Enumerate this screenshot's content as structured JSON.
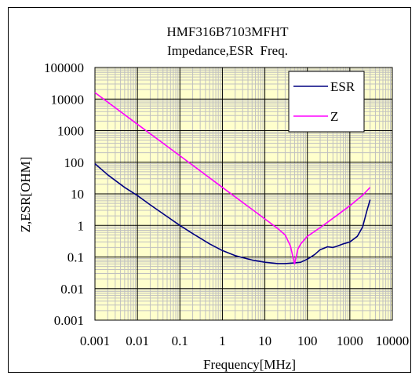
{
  "chart_data": {
    "type": "line",
    "title": "HMF316B7103MFHT",
    "subtitle": "Impedance,ESR  Freq.",
    "xlabel": "Frequency[MHz]",
    "ylabel": "Z,ESR[OHM]",
    "x_scale": "log",
    "y_scale": "log",
    "xlim": [
      0.001,
      10000
    ],
    "ylim": [
      0.001,
      100000
    ],
    "x_ticks": [
      "0.001",
      "0.01",
      "0.1",
      "1",
      "10",
      "100",
      "1000",
      "10000"
    ],
    "y_ticks": [
      "0.001",
      "0.01",
      "0.1",
      "1",
      "10",
      "100",
      "1000",
      "10000",
      "100000"
    ],
    "grid": true,
    "legend_position": "top-right",
    "colors": {
      "plot_bg": "#FFFFCC",
      "minor_grid": "#C0C0C0",
      "major_grid": "#000000",
      "esr": "#000080",
      "z": "#FF00FF"
    },
    "series": [
      {
        "name": "ESR",
        "color": "#000080",
        "points": [
          [
            0.001,
            90
          ],
          [
            0.002,
            40
          ],
          [
            0.005,
            16
          ],
          [
            0.01,
            8.8
          ],
          [
            0.02,
            4.5
          ],
          [
            0.05,
            1.9
          ],
          [
            0.1,
            1.0
          ],
          [
            0.2,
            0.55
          ],
          [
            0.5,
            0.26
          ],
          [
            1,
            0.16
          ],
          [
            2,
            0.11
          ],
          [
            5,
            0.08
          ],
          [
            10,
            0.068
          ],
          [
            20,
            0.062
          ],
          [
            30,
            0.062
          ],
          [
            50,
            0.065
          ],
          [
            70,
            0.068
          ],
          [
            100,
            0.085
          ],
          [
            150,
            0.12
          ],
          [
            200,
            0.17
          ],
          [
            300,
            0.21
          ],
          [
            400,
            0.2
          ],
          [
            500,
            0.22
          ],
          [
            700,
            0.26
          ],
          [
            1000,
            0.3
          ],
          [
            1500,
            0.45
          ],
          [
            2000,
            0.9
          ],
          [
            2500,
            2.8
          ],
          [
            3000,
            6.5
          ]
        ]
      },
      {
        "name": "Z",
        "color": "#FF00FF",
        "points": [
          [
            0.001,
            16000
          ],
          [
            0.01,
            1600
          ],
          [
            0.1,
            160
          ],
          [
            1,
            16
          ],
          [
            5,
            3.2
          ],
          [
            10,
            1.6
          ],
          [
            20,
            0.8
          ],
          [
            30,
            0.5
          ],
          [
            40,
            0.22
          ],
          [
            50,
            0.06
          ],
          [
            60,
            0.18
          ],
          [
            70,
            0.26
          ],
          [
            100,
            0.45
          ],
          [
            200,
            0.85
          ],
          [
            500,
            2.1
          ],
          [
            1000,
            4.2
          ],
          [
            2000,
            9
          ],
          [
            3000,
            16
          ]
        ]
      }
    ]
  }
}
